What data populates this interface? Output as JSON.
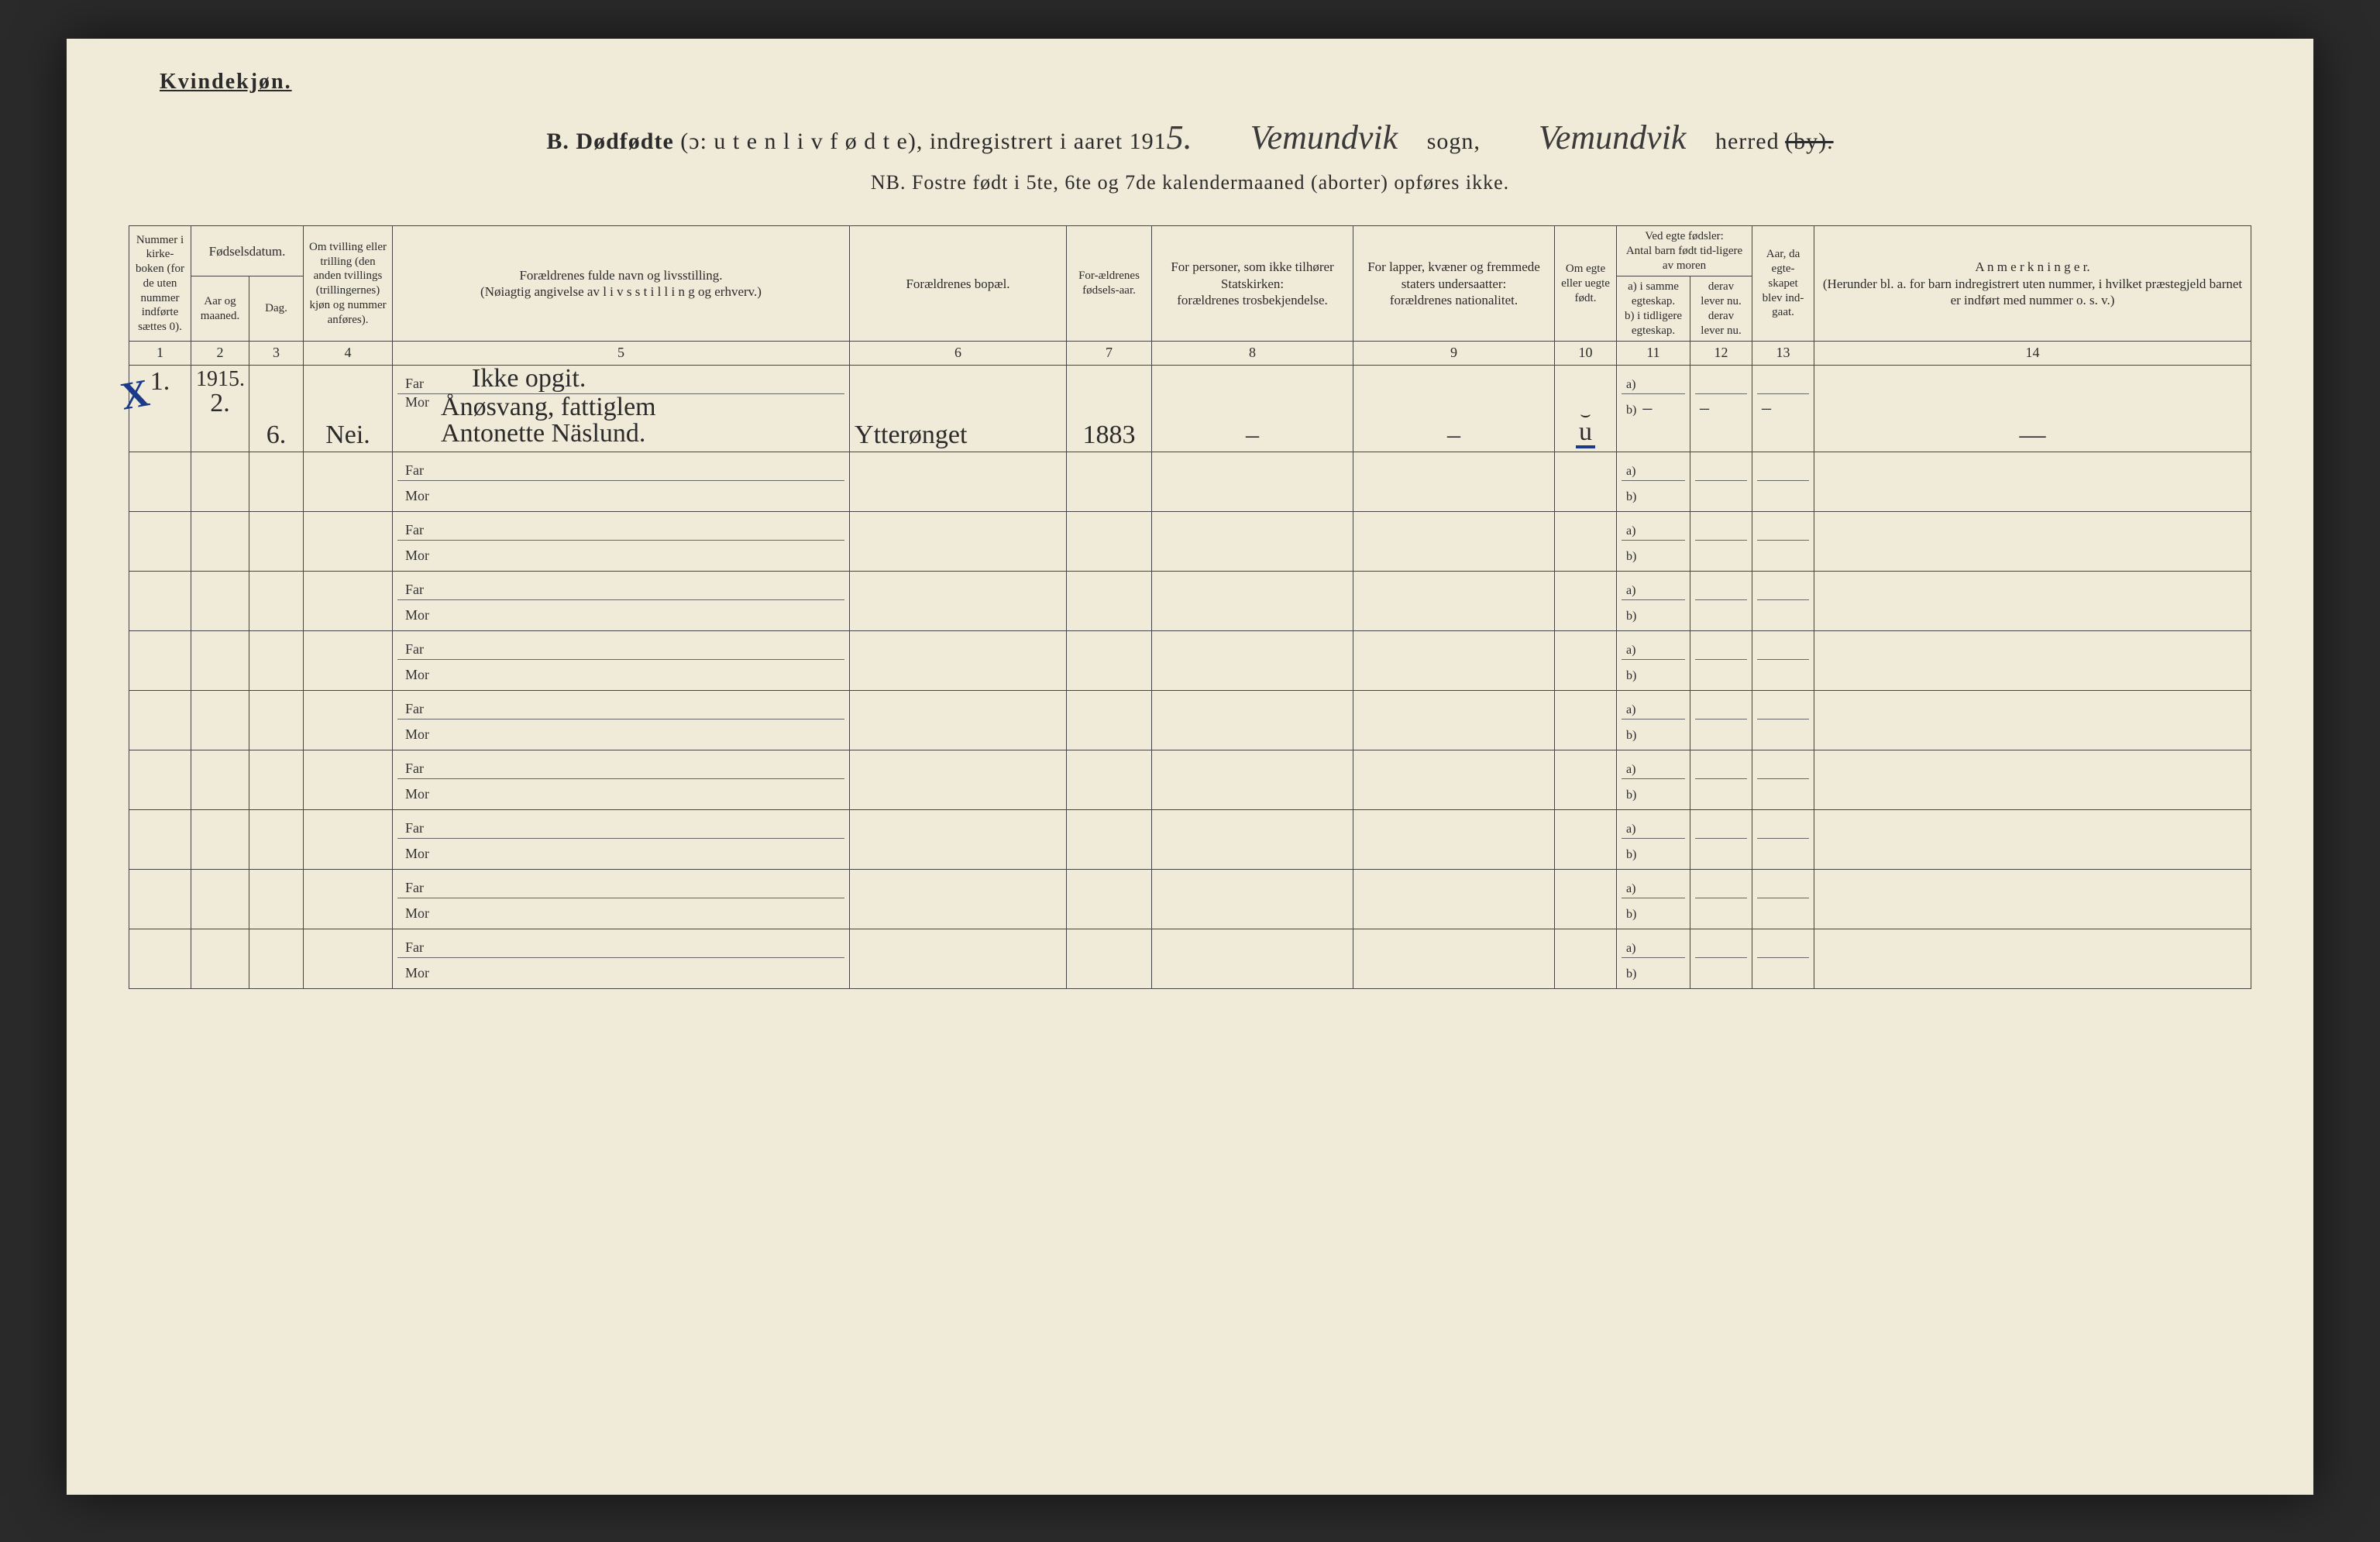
{
  "page": {
    "corner_title": "Kvindekjøn.",
    "header": {
      "prefix_bold": "B.  Dødfødte",
      "prefix_rest": " (ɔ:  u t e n  l i v  f ø d t e),  indregistrert i aaret 191",
      "year_suffix_hand": "5.",
      "sogn_hand": "Vemundvik",
      "sogn_label": "sogn,",
      "herred_hand": "Vemundvik",
      "herred_label": "herred",
      "herred_struck": "(by)."
    },
    "subheader": "NB.  Fostre født i 5te, 6te og 7de kalendermaaned (aborter) opføres ikke.",
    "columns": {
      "c1": "Nummer i kirke-boken (for de uten nummer indførte sættes 0).",
      "c2_group": "Fødselsdatum.",
      "c2": "Aar og maaned.",
      "c3": "Dag.",
      "c4": "Om tvilling eller trilling (den anden tvillings (trillingernes) kjøn og nummer anføres).",
      "c5": "Forældrenes fulde navn og livsstilling.\n(Nøiagtig angivelse av  l i v s s t i l l i n g  og erhverv.)",
      "c6": "Forældrenes bopæl.",
      "c7": "For-ældrenes fødsels-aar.",
      "c8": "For personer, som ikke tilhører Statskirken:\nforældrenes trosbekjendelse.",
      "c9": "For lapper, kvæner og fremmede staters undersaatter:\nforældrenes nationalitet.",
      "c10": "Om egte eller uegte født.",
      "c11_group": "Ved egte fødsler:\nAntal barn født tid-ligere av moren",
      "c11": "a) i samme egteskap.\nb) i tidligere egteskap.",
      "c12": "derav lever nu.\nderav lever nu.",
      "c13": "Aar, da egte-skapet blev ind-gaat.",
      "c14": "A n m e r k n i n g e r.\n(Herunder bl. a. for barn indregistrert uten nummer, i hvilket præstegjeld barnet er indført med nummer o. s. v.)"
    },
    "colnums": [
      "1",
      "2",
      "3",
      "4",
      "5",
      "6",
      "7",
      "8",
      "9",
      "10",
      "11",
      "12",
      "13",
      "14"
    ],
    "labels": {
      "far": "Far",
      "mor": "Mor",
      "a": "a)",
      "b": "b)"
    },
    "margin_x": "X",
    "row1": {
      "num": "1.",
      "year_line": "1915.",
      "month": "2.",
      "day": "6.",
      "twin": "Nei.",
      "far_text": "Ikke opgit.",
      "mor_text_l1": "Ånøsvang, fattiglem",
      "mor_text_l2": "Antonette Näslund.",
      "bopael": "Ytterønget",
      "fodselsaar": "1883",
      "c8": "–",
      "c9": "–",
      "c10_top": "⌣",
      "c10": "u",
      "c11b": "–",
      "c12b": "–",
      "c13b": "–",
      "c14": "—"
    },
    "blank_rows": 9
  },
  "style": {
    "paper": "#f0ead9",
    "ink": "#2b2b2b",
    "blue": "#1a3a8a",
    "rule": "#444"
  }
}
